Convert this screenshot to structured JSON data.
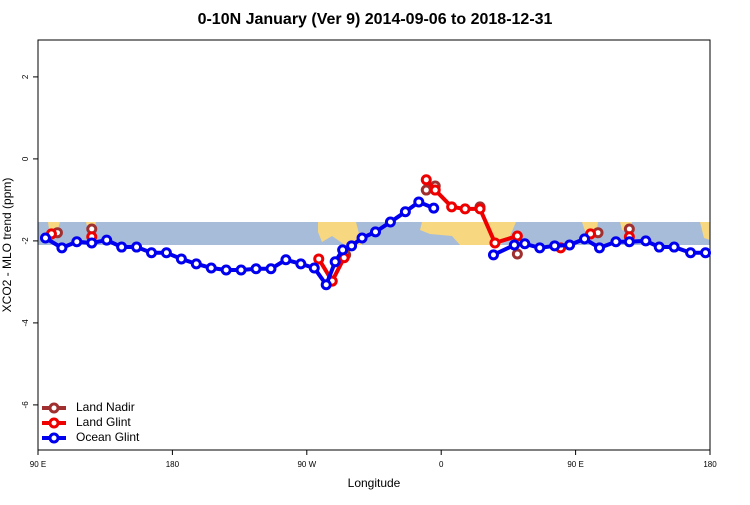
{
  "chart_data": {
    "type": "line",
    "title": "0-10N January (Ver 9)   2014-09-06 to 2018-12-31",
    "x_label": "Longitude",
    "y_label": "XCO2 - MLO trend (ppm)",
    "xlim": [
      90,
      540
    ],
    "xticks": [
      {
        "value": 90,
        "label": "90 E"
      },
      {
        "value": 180,
        "label": "180"
      },
      {
        "value": 270,
        "label": "90 W"
      },
      {
        "value": 360,
        "label": "0"
      },
      {
        "value": 450,
        "label": "90 E"
      },
      {
        "value": 540,
        "label": "180"
      }
    ],
    "ylim": [
      -7.1,
      2.9
    ],
    "yticks": [
      -6,
      -4,
      -2,
      0,
      2
    ],
    "legend": "bottom-left",
    "series": [
      {
        "name": "Land Nadir",
        "color": "#a03030",
        "x": [
          103,
          115,
          126,
          200,
          287,
          291,
          296,
          320,
          350,
          356,
          370,
          386,
          400,
          411,
          440,
          465,
          475,
          486
        ],
        "values": [
          -1.8,
          null,
          -1.71,
          null,
          -2.98,
          null,
          -2.34,
          null,
          -0.76,
          -0.66,
          null,
          -1.17,
          null,
          -2.32,
          null,
          -1.8,
          null,
          -1.71
        ]
      },
      {
        "name": "Land Glint",
        "color": "#ee0000",
        "x": [
          99,
          112,
          126,
          200,
          278,
          287,
          295,
          320,
          350,
          356,
          367,
          376,
          386,
          396,
          411,
          425,
          440,
          450,
          460,
          475,
          486
        ],
        "values": [
          -1.83,
          null,
          -1.9,
          null,
          -2.44,
          -2.98,
          -2.41,
          null,
          -0.51,
          -0.76,
          -1.17,
          -1.22,
          -1.22,
          -2.05,
          -1.88,
          null,
          -2.17,
          null,
          -1.83,
          null,
          -1.9
        ]
      },
      {
        "name": "Ocean Glint",
        "color": "#0000ee",
        "x": [
          95,
          106,
          116,
          126,
          136,
          146,
          156,
          166,
          176,
          186,
          196,
          206,
          216,
          226,
          236,
          246,
          256,
          266,
          275,
          283,
          289,
          294,
          300,
          307,
          316,
          326,
          336,
          345,
          355,
          375,
          395,
          409,
          416,
          426,
          436,
          446,
          456,
          466,
          477,
          486,
          497,
          506,
          516,
          527,
          537
        ],
        "values": [
          -1.93,
          -2.17,
          -2.02,
          -2.05,
          -1.98,
          -2.15,
          -2.15,
          -2.29,
          -2.29,
          -2.44,
          -2.56,
          -2.66,
          -2.71,
          -2.71,
          -2.68,
          -2.68,
          -2.46,
          -2.56,
          -2.66,
          -3.07,
          -2.51,
          -2.22,
          -2.12,
          -1.93,
          -1.78,
          -1.54,
          -1.29,
          -1.05,
          -1.2,
          null,
          -2.34,
          -2.1,
          -2.07,
          -2.17,
          -2.12,
          -2.1,
          -1.95,
          -2.17,
          -2.02,
          -2.02,
          -2.0,
          -2.15,
          -2.15,
          -2.29,
          -2.29
        ]
      }
    ]
  }
}
